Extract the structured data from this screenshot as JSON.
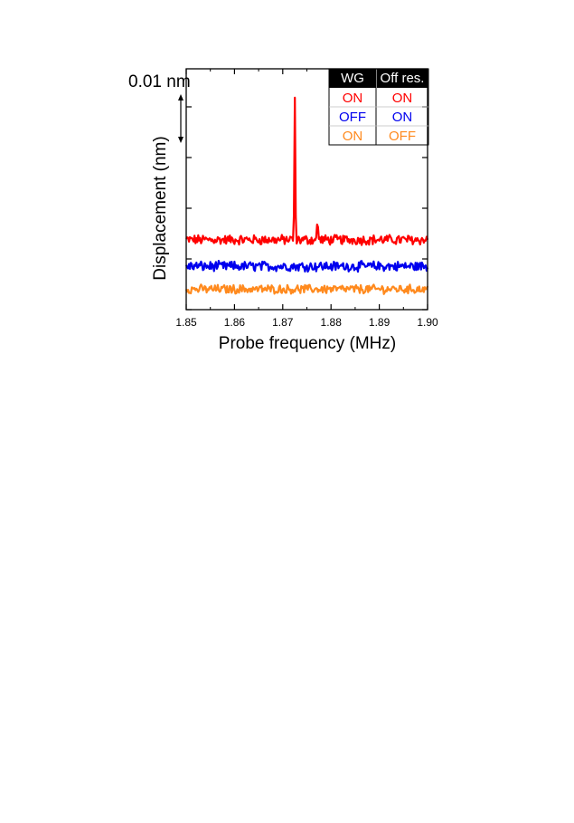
{
  "chart_data": {
    "type": "line",
    "xlabel": "Probe frequency (MHz)",
    "ylabel": "Displacement (nm)",
    "xlim": [
      1.85,
      1.9
    ],
    "ylim": [
      0,
      1
    ],
    "x_ticks": [
      "1.85",
      "1.86",
      "1.87",
      "1.88",
      "1.89",
      "1.90"
    ],
    "y_ticks_unlabeled": true,
    "scale_bar": {
      "label": "0.01 nm",
      "value_nm": 0.01
    },
    "legend_table": {
      "headers": [
        "WG",
        "Off res."
      ],
      "rows": [
        {
          "wg": "ON",
          "off_res": "ON",
          "color": "#ff0000"
        },
        {
          "wg": "OFF",
          "off_res": "ON",
          "color": "#0000ee"
        },
        {
          "wg": "ON",
          "off_res": "OFF",
          "color": "#ff8a1e"
        }
      ]
    },
    "series": [
      {
        "color": "#ff0000",
        "baseline": 0.29,
        "noise": 0.018,
        "peaks": [
          {
            "x": 1.8725,
            "y": 0.88
          },
          {
            "x": 1.8772,
            "y": 0.39
          }
        ]
      },
      {
        "color": "#0000ee",
        "baseline": 0.18,
        "noise": 0.018,
        "peaks": []
      },
      {
        "color": "#ff8a1e",
        "baseline": 0.085,
        "noise": 0.016,
        "peaks": []
      }
    ]
  }
}
